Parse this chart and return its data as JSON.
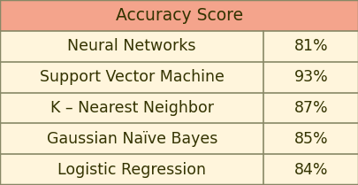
{
  "title": "Accuracy Score",
  "header_bg": "#F4A48C",
  "row_bg": "#FFF5DC",
  "border_color": "#888866",
  "text_color": "#333300",
  "rows": [
    [
      "Neural Networks",
      "81%"
    ],
    [
      "Support Vector Machine",
      "93%"
    ],
    [
      "K – Nearest Neighbor",
      "87%"
    ],
    [
      "Gaussian Naïve Bayes",
      "85%"
    ],
    [
      "Logistic Regression",
      "84%"
    ]
  ],
  "col_split": 0.735,
  "figsize": [
    4.06,
    2.09
  ],
  "dpi": 100,
  "font_size": 12.5,
  "header_font_size": 13.5
}
